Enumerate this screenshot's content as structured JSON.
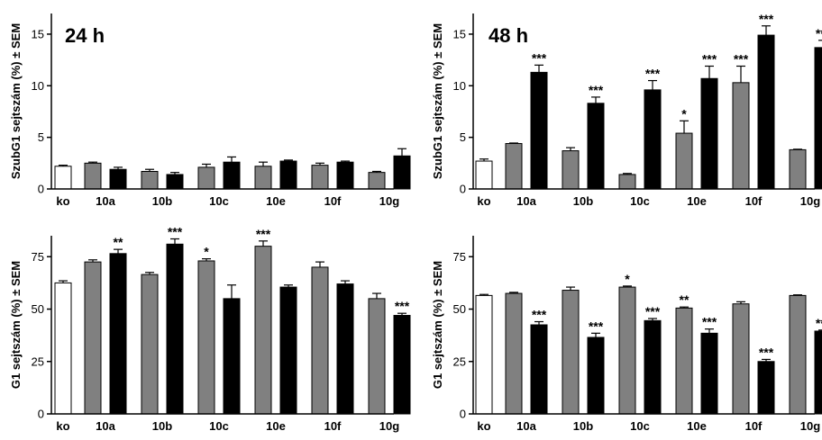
{
  "colors": {
    "ko": "#ffffff",
    "first": "#808080",
    "second": "#000000",
    "axis": "#000000"
  },
  "chart_data": [
    {
      "type": "bar",
      "title": "24 h",
      "ylabel": "SzubG1 sejtszám (%) ± SEM",
      "ylim": [
        0,
        17
      ],
      "yticks": [
        0,
        5,
        10,
        15
      ],
      "categories": [
        "ko",
        "10a",
        "10b",
        "10c",
        "10e",
        "10f",
        "10g"
      ],
      "bars": [
        {
          "category": "ko",
          "color": "white",
          "value": 2.2,
          "err": 0.1,
          "sig": ""
        },
        {
          "category": "10a",
          "color": "gray",
          "value": 2.5,
          "err": 0.1,
          "sig": ""
        },
        {
          "category": "10a",
          "color": "black",
          "value": 1.9,
          "err": 0.2,
          "sig": ""
        },
        {
          "category": "10b",
          "color": "gray",
          "value": 1.7,
          "err": 0.2,
          "sig": ""
        },
        {
          "category": "10b",
          "color": "black",
          "value": 1.4,
          "err": 0.2,
          "sig": ""
        },
        {
          "category": "10c",
          "color": "gray",
          "value": 2.1,
          "err": 0.3,
          "sig": ""
        },
        {
          "category": "10c",
          "color": "black",
          "value": 2.6,
          "err": 0.5,
          "sig": ""
        },
        {
          "category": "10e",
          "color": "gray",
          "value": 2.2,
          "err": 0.4,
          "sig": ""
        },
        {
          "category": "10e",
          "color": "black",
          "value": 2.7,
          "err": 0.1,
          "sig": ""
        },
        {
          "category": "10f",
          "color": "gray",
          "value": 2.3,
          "err": 0.2,
          "sig": ""
        },
        {
          "category": "10f",
          "color": "black",
          "value": 2.6,
          "err": 0.1,
          "sig": ""
        },
        {
          "category": "10g",
          "color": "gray",
          "value": 1.6,
          "err": 0.1,
          "sig": ""
        },
        {
          "category": "10g",
          "color": "black",
          "value": 3.2,
          "err": 0.7,
          "sig": ""
        }
      ]
    },
    {
      "type": "bar",
      "title": "48 h",
      "ylabel": "SzubG1 sejtszám (%) ± SEM",
      "ylim": [
        0,
        17
      ],
      "yticks": [
        0,
        5,
        10,
        15
      ],
      "categories": [
        "ko",
        "10a",
        "10b",
        "10c",
        "10e",
        "10f",
        "10g"
      ],
      "bars": [
        {
          "category": "ko",
          "color": "white",
          "value": 2.7,
          "err": 0.2,
          "sig": ""
        },
        {
          "category": "10a",
          "color": "gray",
          "value": 4.4,
          "err": 0.05,
          "sig": ""
        },
        {
          "category": "10a",
          "color": "black",
          "value": 11.3,
          "err": 0.7,
          "sig": "***"
        },
        {
          "category": "10b",
          "color": "gray",
          "value": 3.7,
          "err": 0.3,
          "sig": ""
        },
        {
          "category": "10b",
          "color": "black",
          "value": 8.3,
          "err": 0.6,
          "sig": "***"
        },
        {
          "category": "10c",
          "color": "gray",
          "value": 1.4,
          "err": 0.1,
          "sig": ""
        },
        {
          "category": "10c",
          "color": "black",
          "value": 9.6,
          "err": 0.9,
          "sig": "***"
        },
        {
          "category": "10e",
          "color": "gray",
          "value": 5.4,
          "err": 1.2,
          "sig": "*"
        },
        {
          "category": "10e",
          "color": "black",
          "value": 10.7,
          "err": 1.2,
          "sig": "***"
        },
        {
          "category": "10f",
          "color": "gray",
          "value": 10.3,
          "err": 1.6,
          "sig": "***"
        },
        {
          "category": "10f",
          "color": "black",
          "value": 14.9,
          "err": 0.9,
          "sig": "***"
        },
        {
          "category": "10g",
          "color": "gray",
          "value": 3.8,
          "err": 0.05,
          "sig": ""
        },
        {
          "category": "10g",
          "color": "black",
          "value": 13.7,
          "err": 0.7,
          "sig": "***"
        }
      ]
    },
    {
      "type": "bar",
      "title": "",
      "ylabel": "G1 sejtszám (%) ± SEM",
      "ylim": [
        0,
        85
      ],
      "yticks": [
        0,
        25,
        50,
        75
      ],
      "categories": [
        "ko",
        "10a",
        "10b",
        "10c",
        "10e",
        "10f",
        "10g"
      ],
      "bars": [
        {
          "category": "ko",
          "color": "white",
          "value": 62.5,
          "err": 1.0,
          "sig": ""
        },
        {
          "category": "10a",
          "color": "gray",
          "value": 72.5,
          "err": 1.0,
          "sig": ""
        },
        {
          "category": "10a",
          "color": "black",
          "value": 76.5,
          "err": 2.0,
          "sig": "**"
        },
        {
          "category": "10b",
          "color": "gray",
          "value": 66.5,
          "err": 1.0,
          "sig": ""
        },
        {
          "category": "10b",
          "color": "black",
          "value": 81.0,
          "err": 2.5,
          "sig": "***"
        },
        {
          "category": "10c",
          "color": "gray",
          "value": 73.0,
          "err": 1.0,
          "sig": "*"
        },
        {
          "category": "10c",
          "color": "black",
          "value": 55.0,
          "err": 6.5,
          "sig": ""
        },
        {
          "category": "10e",
          "color": "gray",
          "value": 80.0,
          "err": 2.5,
          "sig": "***"
        },
        {
          "category": "10e",
          "color": "black",
          "value": 60.5,
          "err": 1.0,
          "sig": ""
        },
        {
          "category": "10f",
          "color": "gray",
          "value": 70.0,
          "err": 2.5,
          "sig": ""
        },
        {
          "category": "10f",
          "color": "black",
          "value": 62.0,
          "err": 1.5,
          "sig": ""
        },
        {
          "category": "10g",
          "color": "gray",
          "value": 55.0,
          "err": 2.5,
          "sig": ""
        },
        {
          "category": "10g",
          "color": "black",
          "value": 47.0,
          "err": 1.0,
          "sig": "***"
        }
      ]
    },
    {
      "type": "bar",
      "title": "",
      "ylabel": "G1 sejtszám (%) ± SEM",
      "ylim": [
        0,
        85
      ],
      "yticks": [
        0,
        25,
        50,
        75
      ],
      "categories": [
        "ko",
        "10a",
        "10b",
        "10c",
        "10e",
        "10f",
        "10g"
      ],
      "bars": [
        {
          "category": "ko",
          "color": "white",
          "value": 56.5,
          "err": 0.5,
          "sig": ""
        },
        {
          "category": "10a",
          "color": "gray",
          "value": 57.5,
          "err": 0.5,
          "sig": ""
        },
        {
          "category": "10a",
          "color": "black",
          "value": 42.5,
          "err": 1.5,
          "sig": "***"
        },
        {
          "category": "10b",
          "color": "gray",
          "value": 59.0,
          "err": 1.5,
          "sig": ""
        },
        {
          "category": "10b",
          "color": "black",
          "value": 36.5,
          "err": 2.0,
          "sig": "***"
        },
        {
          "category": "10c",
          "color": "gray",
          "value": 60.5,
          "err": 0.5,
          "sig": "*"
        },
        {
          "category": "10c",
          "color": "black",
          "value": 44.5,
          "err": 1.0,
          "sig": "***"
        },
        {
          "category": "10e",
          "color": "gray",
          "value": 50.5,
          "err": 0.5,
          "sig": "**"
        },
        {
          "category": "10e",
          "color": "black",
          "value": 38.5,
          "err": 2.0,
          "sig": "***"
        },
        {
          "category": "10f",
          "color": "gray",
          "value": 52.5,
          "err": 1.0,
          "sig": ""
        },
        {
          "category": "10f",
          "color": "black",
          "value": 25.0,
          "err": 1.0,
          "sig": "***"
        },
        {
          "category": "10g",
          "color": "gray",
          "value": 56.5,
          "err": 0.3,
          "sig": ""
        },
        {
          "category": "10g",
          "color": "black",
          "value": 39.5,
          "err": 0.5,
          "sig": "***"
        }
      ]
    }
  ]
}
